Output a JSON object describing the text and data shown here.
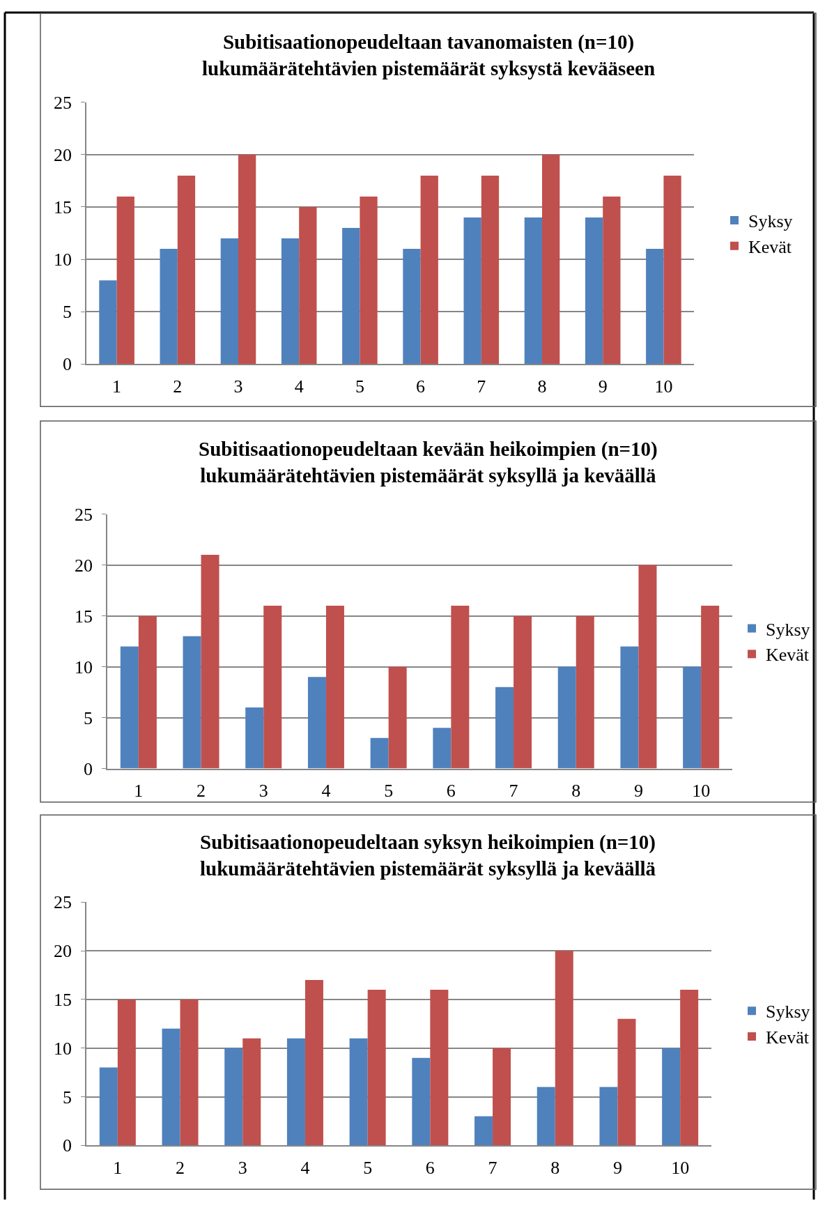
{
  "chart_data": [
    {
      "type": "bar",
      "title": "Subitisaationopeudeltaan tavanomaisten (n=10) lukumäärätehtävien pistemäärät syksystä kevääseen",
      "categories": [
        "1",
        "2",
        "3",
        "4",
        "5",
        "6",
        "7",
        "8",
        "9",
        "10"
      ],
      "series": [
        {
          "name": "Syksy",
          "color": "#4f81bd",
          "values": [
            8,
            11,
            12,
            12,
            13,
            11,
            14,
            14,
            14,
            11
          ]
        },
        {
          "name": "Kevät",
          "color": "#c0504d",
          "values": [
            16,
            18,
            20,
            15,
            16,
            18,
            18,
            20,
            16,
            18
          ]
        }
      ],
      "ylim": [
        0,
        25
      ],
      "yticks": [
        0,
        5,
        10,
        15,
        20,
        25
      ],
      "grid": "y",
      "legend": "right"
    },
    {
      "type": "bar",
      "title": "Subitisaationopeudeltaan kevään heikoimpien (n=10) lukumäärätehtävien pistemäärät syksyllä ja keväällä",
      "categories": [
        "1",
        "2",
        "3",
        "4",
        "5",
        "6",
        "7",
        "8",
        "9",
        "10"
      ],
      "series": [
        {
          "name": "Syksy",
          "color": "#4f81bd",
          "values": [
            12,
            13,
            6,
            9,
            3,
            4,
            8,
            10,
            12,
            10
          ]
        },
        {
          "name": "Kevät",
          "color": "#c0504d",
          "values": [
            15,
            21,
            16,
            16,
            10,
            16,
            15,
            15,
            20,
            16
          ]
        }
      ],
      "ylim": [
        0,
        25
      ],
      "yticks": [
        0,
        5,
        10,
        15,
        20,
        25
      ],
      "grid": "y",
      "legend": "right"
    },
    {
      "type": "bar",
      "title": "Subitisaationopeudeltaan syksyn heikoimpien (n=10) lukumäärätehtävien pistemäärät syksyllä ja keväällä",
      "categories": [
        "1",
        "2",
        "3",
        "4",
        "5",
        "6",
        "7",
        "8",
        "9",
        "10"
      ],
      "series": [
        {
          "name": "Syksy",
          "color": "#4f81bd",
          "values": [
            8,
            12,
            10,
            11,
            11,
            9,
            3,
            6,
            6,
            10
          ]
        },
        {
          "name": "Kevät",
          "color": "#c0504d",
          "values": [
            15,
            15,
            11,
            17,
            16,
            16,
            10,
            20,
            13,
            16
          ]
        }
      ],
      "ylim": [
        0,
        25
      ],
      "yticks": [
        0,
        5,
        10,
        15,
        20,
        25
      ],
      "grid": "y",
      "legend": "right"
    }
  ]
}
